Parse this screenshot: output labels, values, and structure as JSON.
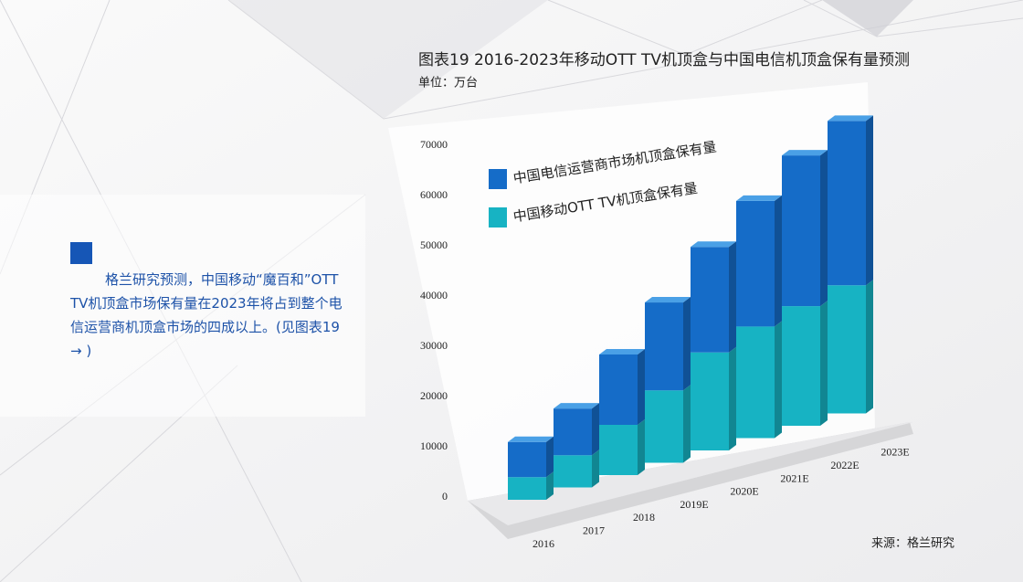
{
  "chart_data": {
    "type": "bar3d-stacked",
    "title": "图表19  2016-2023年移动OTT TV机顶盒与中国电信机顶盒保有量预测",
    "subtitle": "单位：万台",
    "source": "来源：格兰研究",
    "note": "格兰研究预测，中国移动“魔百和”OTT TV机顶盒市场保有量在2023年将占到整个电信运营商机顶盒市场的四成以上。(见图表19 → )",
    "categories": [
      "2016",
      "2017",
      "2018",
      "2019E",
      "2020E",
      "2021E",
      "2022E",
      "2023E"
    ],
    "series": [
      {
        "name": "中国移动OTT TV机顶盒保有量",
        "color": "#17b3c3",
        "values": [
          4500,
          6400,
          10000,
          14400,
          19500,
          22200,
          23800,
          25500
        ]
      },
      {
        "name": "中国电信运营商市场机顶盒保有量",
        "color": "#156cc8",
        "values": [
          7000,
          9300,
          14000,
          17500,
          21000,
          25000,
          30000,
          32700
        ]
      }
    ],
    "ylim": [
      0,
      70000
    ],
    "yticks": [
      0,
      10000,
      20000,
      30000,
      40000,
      50000,
      60000,
      70000
    ]
  }
}
